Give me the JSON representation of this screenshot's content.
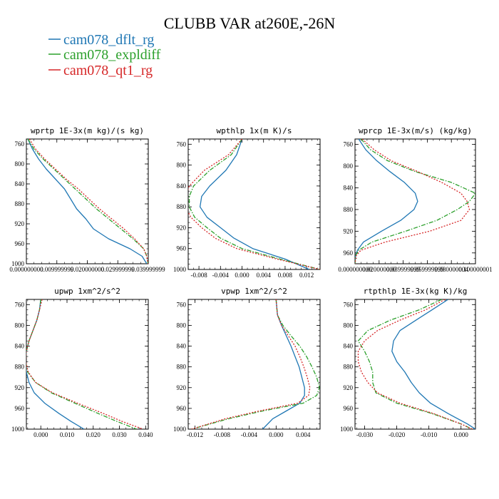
{
  "figure": {
    "title": "CLUBB VAR at260E,-26N",
    "legend": [
      {
        "label": "cam078_dflt_rg",
        "color": "#1f77b4",
        "dash": "solid"
      },
      {
        "label": "cam078_expldiff",
        "color": "#2ca02c",
        "dash": "dashdot"
      },
      {
        "label": "cam078_qt1_rg",
        "color": "#d62728",
        "dash": "dot"
      }
    ]
  },
  "chart_data": [
    {
      "type": "line",
      "title": "wprtp  1E-3x(m kg)/(s kg)",
      "xlim": [
        0,
        0.04
      ],
      "ylim": [
        1000,
        750
      ],
      "y_inverted": true,
      "xticks": [
        0,
        0.01,
        0.02,
        0.03,
        0.04
      ],
      "xtick_labels": [
        "0.000000000",
        "0.009999999",
        "0.020000000",
        "0.029999999",
        "0.039999999"
      ],
      "yticks": [
        760,
        800,
        840,
        880,
        920,
        960,
        1000
      ],
      "y": [
        750,
        770,
        790,
        810,
        830,
        850,
        870,
        890,
        910,
        930,
        950,
        970,
        985,
        995,
        1000
      ],
      "series": [
        {
          "name": "cam078_dflt_rg",
          "x": [
            0.0005,
            0.002,
            0.004,
            0.0065,
            0.0095,
            0.0125,
            0.0145,
            0.0165,
            0.0195,
            0.022,
            0.027,
            0.034,
            0.038,
            0.039,
            0.0395
          ]
        },
        {
          "name": "cam078_expldiff",
          "x": [
            0.0005,
            0.0025,
            0.0055,
            0.009,
            0.0125,
            0.016,
            0.0195,
            0.023,
            0.027,
            0.031,
            0.035,
            0.0385,
            0.0395,
            0.0398,
            0.0399
          ]
        },
        {
          "name": "cam078_qt1_rg",
          "x": [
            0.001,
            0.003,
            0.006,
            0.0095,
            0.013,
            0.017,
            0.0205,
            0.024,
            0.028,
            0.032,
            0.0355,
            0.0385,
            0.0395,
            0.0398,
            0.0399
          ]
        }
      ]
    },
    {
      "type": "line",
      "title": "wpthlp  1x(m K)/s",
      "xlim": [
        -0.01,
        0.0145
      ],
      "ylim": [
        1000,
        750
      ],
      "y_inverted": true,
      "xticks": [
        -0.008,
        -0.004,
        0.0,
        0.004,
        0.008,
        0.012
      ],
      "xtick_labels": [
        "-0.008",
        "-0.004",
        "0.000",
        "0.004",
        "0.008",
        "0.012"
      ],
      "yticks": [
        760,
        800,
        840,
        880,
        920,
        960,
        1000
      ],
      "y": [
        750,
        780,
        810,
        840,
        860,
        880,
        900,
        920,
        940,
        960,
        980,
        1000
      ],
      "series": [
        {
          "name": "cam078_dflt_rg",
          "x": [
            0.0,
            -0.001,
            -0.003,
            -0.006,
            -0.0075,
            -0.0078,
            -0.0065,
            -0.004,
            -0.0015,
            0.002,
            0.008,
            0.0125
          ]
        },
        {
          "name": "cam078_expldiff",
          "x": [
            0.0,
            -0.002,
            -0.006,
            -0.009,
            -0.0098,
            -0.0098,
            -0.0088,
            -0.0065,
            -0.004,
            0.0,
            0.007,
            0.0145
          ]
        },
        {
          "name": "cam078_qt1_rg",
          "x": [
            0.0,
            -0.0025,
            -0.007,
            -0.0098,
            -0.0105,
            -0.0105,
            -0.0095,
            -0.0075,
            -0.005,
            -0.001,
            0.0065,
            0.0145
          ]
        }
      ]
    },
    {
      "type": "line",
      "title": "wprcp  1E-3x(m/s) (kg/kg)",
      "xlim": [
        0,
        0.1
      ],
      "ylim": [
        980,
        750
      ],
      "y_inverted": true,
      "xticks": [
        0,
        0.02,
        0.04,
        0.06,
        0.08,
        0.1
      ],
      "xtick_labels": [
        "0.000000000",
        "0.020000000",
        "0.039999999",
        "0.059999999",
        "0.080000004",
        "0.100000001"
      ],
      "yticks": [
        760,
        800,
        840,
        880,
        920,
        960
      ],
      "y": [
        750,
        770,
        790,
        810,
        830,
        850,
        865,
        880,
        900,
        920,
        940,
        955,
        965,
        980
      ],
      "series": [
        {
          "name": "cam078_dflt_rg",
          "x": [
            0.003,
            0.009,
            0.018,
            0.029,
            0.041,
            0.05,
            0.052,
            0.049,
            0.038,
            0.022,
            0.007,
            0.002,
            0.0005,
            0.0
          ]
        },
        {
          "name": "cam078_expldiff",
          "x": [
            0.005,
            0.013,
            0.027,
            0.05,
            0.08,
            0.1,
            0.095,
            0.085,
            0.068,
            0.042,
            0.014,
            0.003,
            0.0005,
            0.0
          ]
        },
        {
          "name": "cam078_qt1_rg",
          "x": [
            0.006,
            0.016,
            0.03,
            0.052,
            0.072,
            0.088,
            0.093,
            0.095,
            0.088,
            0.062,
            0.025,
            0.005,
            0.001,
            0.0
          ]
        }
      ]
    },
    {
      "type": "line",
      "title": "upwp   1xm^2/s^2",
      "xlim": [
        -0.0055,
        0.041
      ],
      "ylim": [
        1000,
        750
      ],
      "y_inverted": true,
      "xticks": [
        0.0,
        0.01,
        0.02,
        0.03,
        0.04
      ],
      "xtick_labels": [
        "0.000",
        "0.010",
        "0.020",
        "0.030",
        "0.040"
      ],
      "yticks": [
        760,
        800,
        840,
        880,
        920,
        960,
        1000
      ],
      "y": [
        750,
        770,
        790,
        810,
        830,
        850,
        870,
        890,
        910,
        930,
        950,
        970,
        985,
        1000
      ],
      "series": [
        {
          "name": "cam078_dflt_rg",
          "x": [
            0.0,
            -0.0005,
            -0.0015,
            -0.003,
            -0.0045,
            -0.0055,
            -0.0058,
            -0.0055,
            -0.0045,
            -0.0025,
            0.0015,
            0.007,
            0.0115,
            0.0165
          ]
        },
        {
          "name": "cam078_expldiff",
          "x": [
            0.0,
            -0.0005,
            -0.0015,
            -0.003,
            -0.0045,
            -0.0055,
            -0.0058,
            -0.005,
            -0.002,
            0.004,
            0.013,
            0.022,
            0.029,
            0.0365
          ]
        },
        {
          "name": "cam078_qt1_rg",
          "x": [
            0.0005,
            -0.0005,
            -0.0015,
            -0.003,
            -0.0045,
            -0.0055,
            -0.0057,
            -0.0048,
            -0.002,
            0.0045,
            0.014,
            0.024,
            0.031,
            0.039
          ]
        }
      ]
    },
    {
      "type": "line",
      "title": "vpwp   1xm^2/s^2",
      "xlim": [
        -0.013,
        0.0065
      ],
      "ylim": [
        1000,
        750
      ],
      "y_inverted": true,
      "xticks": [
        -0.012,
        -0.008,
        -0.004,
        0.0,
        0.004
      ],
      "xtick_labels": [
        "-0.012",
        "-0.008",
        "-0.004",
        "0.000",
        "0.004"
      ],
      "yticks": [
        760,
        800,
        840,
        880,
        920,
        960,
        1000
      ],
      "y": [
        750,
        780,
        800,
        820,
        840,
        860,
        880,
        900,
        920,
        935,
        950,
        965,
        980,
        1000
      ],
      "series": [
        {
          "name": "cam078_dflt_rg",
          "x": [
            0.0,
            0.0002,
            0.0008,
            0.0015,
            0.0022,
            0.0028,
            0.0034,
            0.0038,
            0.0042,
            0.0042,
            0.0035,
            0.0015,
            -0.0005,
            -0.002
          ]
        },
        {
          "name": "cam078_expldiff",
          "x": [
            0.0,
            0.0002,
            0.001,
            0.0022,
            0.0035,
            0.0045,
            0.0053,
            0.006,
            0.0064,
            0.006,
            0.004,
            -0.002,
            -0.007,
            -0.0125
          ]
        },
        {
          "name": "cam078_qt1_rg",
          "x": [
            0.0,
            0.0002,
            0.0008,
            0.0018,
            0.0028,
            0.0035,
            0.0041,
            0.0046,
            0.005,
            0.0048,
            0.0032,
            -0.0025,
            -0.0075,
            -0.0125
          ]
        }
      ]
    },
    {
      "type": "line",
      "title": "rtpthlp  1E-3x(kg K)/kg",
      "xlim": [
        -0.033,
        0.0045
      ],
      "ylim": [
        1000,
        750
      ],
      "y_inverted": true,
      "xticks": [
        -0.03,
        -0.02,
        -0.01,
        0.0
      ],
      "xtick_labels": [
        "-0.030",
        "-0.020",
        "-0.010",
        "0.000"
      ],
      "yticks": [
        760,
        800,
        840,
        880,
        920,
        960,
        1000
      ],
      "y": [
        750,
        770,
        790,
        810,
        830,
        850,
        870,
        890,
        910,
        930,
        950,
        970,
        990,
        1000
      ],
      "series": [
        {
          "name": "cam078_dflt_rg",
          "x": [
            -0.004,
            -0.009,
            -0.014,
            -0.019,
            -0.021,
            -0.0215,
            -0.02,
            -0.0175,
            -0.0155,
            -0.013,
            -0.0095,
            -0.004,
            0.002,
            0.0045
          ]
        },
        {
          "name": "cam078_expldiff",
          "x": [
            -0.006,
            -0.013,
            -0.022,
            -0.029,
            -0.032,
            -0.03,
            -0.0285,
            -0.0275,
            -0.0275,
            -0.0265,
            -0.02,
            -0.009,
            0.0,
            0.0035
          ]
        },
        {
          "name": "cam078_qt1_rg",
          "x": [
            -0.005,
            -0.011,
            -0.019,
            -0.026,
            -0.03,
            -0.032,
            -0.032,
            -0.031,
            -0.029,
            -0.026,
            -0.019,
            -0.0085,
            0.0,
            0.0035
          ]
        }
      ]
    }
  ]
}
